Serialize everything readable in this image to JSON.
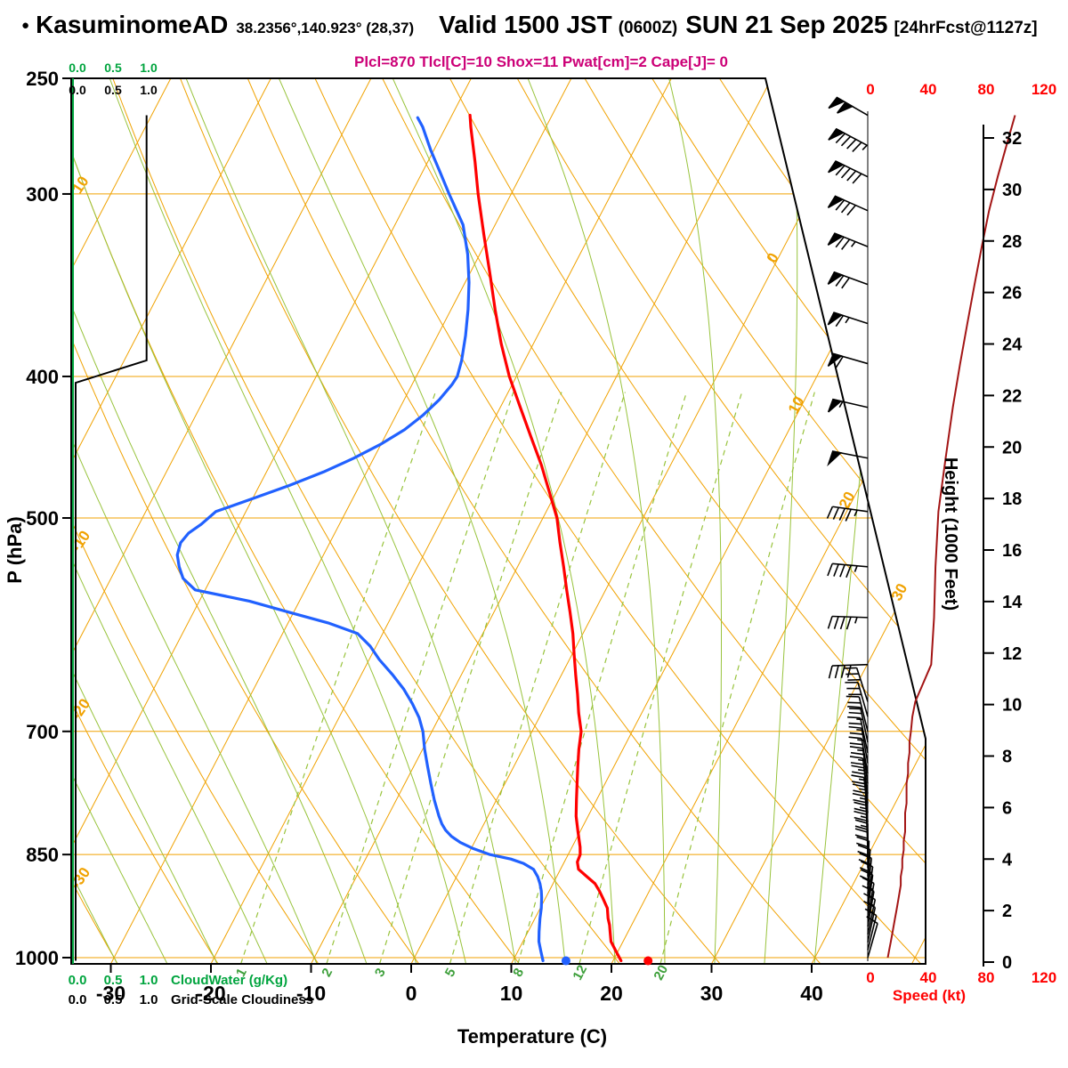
{
  "header": {
    "bullet": "●",
    "station": "KasuminomeAD",
    "coords": "38.2356°,140.923° (28,37)",
    "valid_main": "Valid 1500 JST",
    "valid_z": "(0600Z)",
    "valid_date": "SUN 21 Sep 2025",
    "fcst_tag": "[24hrFcst@1127z]",
    "indices": "Plcl=870 Tlcl[C]=10 Shox=11 Pwat[cm]=2 Cape[J]= 0"
  },
  "colors": {
    "grid_orange": "#f0a202",
    "grid_green": "#98c33c",
    "label_green": "#3fa03c",
    "ui_green": "#00a43e",
    "temp_red": "#ff0000",
    "dewpoint_blue": "#2161ff",
    "speed_maroon": "#a31515",
    "indices_magenta": "#cc0077",
    "axis_black": "#000000"
  },
  "axis_titles": {
    "pressure": "P (hPa)",
    "temperature": "Temperature (C)",
    "height": "Height (1000 Feet)",
    "speed": "Speed (kt)"
  },
  "legends": {
    "scale_values": [
      "0.0",
      "0.5",
      "1.0"
    ],
    "cloudwater": "CloudWater (g/Kg)",
    "cloudiness": "Grid-Scale Cloudiness"
  },
  "chart_data": {
    "type": "line",
    "subtype": "skew-t log-p sounding",
    "pressure_ticks": [
      250,
      300,
      400,
      500,
      700,
      850,
      1000
    ],
    "temperature_ticks": [
      -30,
      -20,
      -10,
      0,
      10,
      20,
      30,
      40
    ],
    "height_ticks_kft": [
      0,
      2,
      4,
      6,
      8,
      10,
      12,
      14,
      16,
      18,
      20,
      22,
      24,
      26,
      28,
      30,
      32
    ],
    "speed_ticks_kt": [
      0,
      40,
      80,
      120
    ],
    "isotherms_c": {
      "min": -80,
      "max": 50,
      "step": 10
    },
    "dry_adiabats_c": {
      "min": -40,
      "max": 110,
      "step": 10
    },
    "moist_adiabats_c": {
      "min": -60,
      "max": 40,
      "step": 5
    },
    "mixing_ratio_lines_gkg": [
      1,
      2,
      3,
      5,
      8,
      12,
      20
    ],
    "isotherm_labels_right": [
      {
        "t": 0,
        "p": 333
      },
      {
        "t": 10,
        "p": 420
      },
      {
        "t": 20,
        "p": 488
      },
      {
        "t": 30,
        "p": 564
      }
    ],
    "adiabat_labels_left": [
      {
        "label": "10",
        "p": 297
      },
      {
        "label": "-10",
        "p": 521
      },
      {
        "label": "-20",
        "p": 679
      },
      {
        "label": "-30",
        "p": 886
      }
    ],
    "temperature_profile": [
      [
        1005,
        20.8
      ],
      [
        990,
        19.8
      ],
      [
        975,
        18.8
      ],
      [
        960,
        18.2
      ],
      [
        950,
        17.8
      ],
      [
        940,
        17.3
      ],
      [
        925,
        16.7
      ],
      [
        910,
        15.7
      ],
      [
        900,
        15.0
      ],
      [
        890,
        14.2
      ],
      [
        880,
        13.0
      ],
      [
        870,
        11.8
      ],
      [
        860,
        11.3
      ],
      [
        850,
        11.2
      ],
      [
        840,
        10.8
      ],
      [
        820,
        9.8
      ],
      [
        800,
        8.8
      ],
      [
        780,
        8.0
      ],
      [
        760,
        7.2
      ],
      [
        740,
        6.4
      ],
      [
        720,
        5.6
      ],
      [
        700,
        4.9
      ],
      [
        680,
        3.7
      ],
      [
        660,
        2.6
      ],
      [
        640,
        1.4
      ],
      [
        620,
        0.2
      ],
      [
        600,
        -1.0
      ],
      [
        580,
        -2.4
      ],
      [
        560,
        -3.9
      ],
      [
        540,
        -5.4
      ],
      [
        520,
        -7.0
      ],
      [
        500,
        -8.6
      ],
      [
        480,
        -10.7
      ],
      [
        460,
        -12.9
      ],
      [
        440,
        -15.4
      ],
      [
        420,
        -18.0
      ],
      [
        400,
        -20.7
      ],
      [
        380,
        -23.2
      ],
      [
        360,
        -25.6
      ],
      [
        340,
        -28.0
      ],
      [
        320,
        -30.6
      ],
      [
        300,
        -33.3
      ],
      [
        285,
        -35.3
      ],
      [
        270,
        -37.5
      ],
      [
        265,
        -38.2
      ]
    ],
    "dewpoint_profile": [
      [
        1005,
        13.0
      ],
      [
        990,
        12.3
      ],
      [
        975,
        11.6
      ],
      [
        960,
        11.1
      ],
      [
        950,
        10.8
      ],
      [
        940,
        10.5
      ],
      [
        925,
        10.1
      ],
      [
        910,
        9.6
      ],
      [
        900,
        9.2
      ],
      [
        890,
        8.7
      ],
      [
        880,
        8.1
      ],
      [
        870,
        7.3
      ],
      [
        862,
        6.0
      ],
      [
        856,
        4.5
      ],
      [
        850,
        2.2
      ],
      [
        842,
        0.2
      ],
      [
        834,
        -1.4
      ],
      [
        826,
        -2.6
      ],
      [
        818,
        -3.5
      ],
      [
        810,
        -4.2
      ],
      [
        800,
        -4.9
      ],
      [
        780,
        -6.2
      ],
      [
        760,
        -7.4
      ],
      [
        740,
        -8.6
      ],
      [
        720,
        -9.8
      ],
      [
        700,
        -10.9
      ],
      [
        685,
        -12.0
      ],
      [
        670,
        -13.4
      ],
      [
        655,
        -15.0
      ],
      [
        640,
        -16.9
      ],
      [
        625,
        -19.0
      ],
      [
        612,
        -20.6
      ],
      [
        600,
        -22.5
      ],
      [
        590,
        -26.0
      ],
      [
        580,
        -30.5
      ],
      [
        570,
        -35.0
      ],
      [
        560,
        -41.0
      ],
      [
        550,
        -42.8
      ],
      [
        540,
        -43.8
      ],
      [
        530,
        -44.6
      ],
      [
        520,
        -44.9
      ],
      [
        512,
        -44.6
      ],
      [
        505,
        -43.8
      ],
      [
        495,
        -43.0
      ],
      [
        485,
        -40.0
      ],
      [
        475,
        -37.0
      ],
      [
        465,
        -34.3
      ],
      [
        455,
        -32.0
      ],
      [
        445,
        -30.0
      ],
      [
        435,
        -28.4
      ],
      [
        425,
        -27.3
      ],
      [
        415,
        -26.5
      ],
      [
        405,
        -26.0
      ],
      [
        400,
        -25.9
      ],
      [
        390,
        -26.3
      ],
      [
        375,
        -27.2
      ],
      [
        360,
        -28.3
      ],
      [
        345,
        -29.6
      ],
      [
        330,
        -31.2
      ],
      [
        315,
        -33.2
      ],
      [
        300,
        -36.2
      ],
      [
        290,
        -38.2
      ],
      [
        280,
        -40.3
      ],
      [
        270,
        -42.3
      ],
      [
        266,
        -43.3
      ]
    ],
    "surface_markers": {
      "pressure": 1005,
      "temperature_c": 23.5,
      "dewpoint_c": 15.3
    },
    "cloudiness_profile": [
      [
        1005,
        0
      ],
      [
        404,
        0
      ],
      [
        390,
        0.96
      ],
      [
        265,
        0.96
      ]
    ],
    "cloudwater_profile": [
      [
        1005,
        0
      ],
      [
        265,
        0
      ]
    ],
    "wind_profile": [
      [
        265,
        300,
        100
      ],
      [
        278,
        298,
        94
      ],
      [
        292,
        296,
        88
      ],
      [
        308,
        294,
        82
      ],
      [
        326,
        292,
        77
      ],
      [
        346,
        290,
        72
      ],
      [
        368,
        288,
        67
      ],
      [
        392,
        286,
        62
      ],
      [
        420,
        283,
        57
      ],
      [
        455,
        281,
        52
      ],
      [
        495,
        278,
        47
      ],
      [
        540,
        275,
        45
      ],
      [
        585,
        272,
        44
      ],
      [
        630,
        268,
        42
      ],
      [
        668,
        342,
        31
      ],
      [
        684,
        344,
        29
      ],
      [
        700,
        346,
        28
      ],
      [
        712,
        348,
        27
      ],
      [
        724,
        348,
        27
      ],
      [
        736,
        350,
        26
      ],
      [
        748,
        350,
        26
      ],
      [
        760,
        352,
        25
      ],
      [
        772,
        352,
        25
      ],
      [
        784,
        354,
        25
      ],
      [
        796,
        354,
        24
      ],
      [
        808,
        356,
        24
      ],
      [
        820,
        356,
        24
      ],
      [
        832,
        358,
        23
      ],
      [
        844,
        358,
        23
      ],
      [
        856,
        0,
        22
      ],
      [
        868,
        0,
        22
      ],
      [
        880,
        2,
        21
      ],
      [
        892,
        4,
        21
      ],
      [
        904,
        6,
        20
      ],
      [
        916,
        8,
        19
      ],
      [
        928,
        8,
        18
      ],
      [
        940,
        10,
        17
      ],
      [
        952,
        10,
        16
      ],
      [
        964,
        12,
        15
      ],
      [
        976,
        12,
        14
      ],
      [
        988,
        14,
        13
      ],
      [
        1000,
        16,
        12
      ]
    ]
  }
}
